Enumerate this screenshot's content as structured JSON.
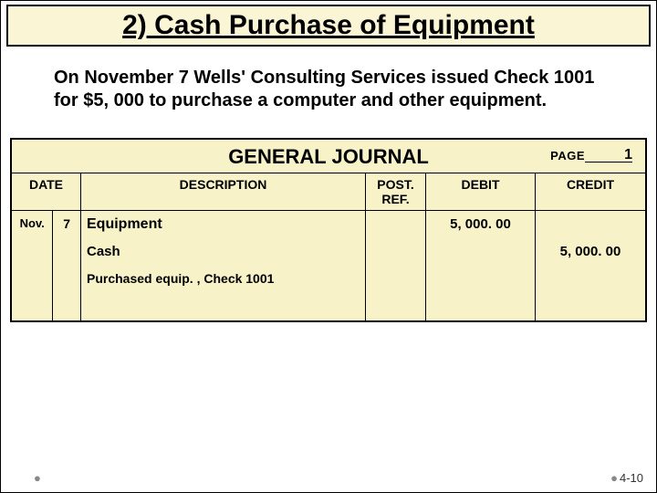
{
  "title": "2) Cash Purchase of Equipment",
  "narrative": "On November 7 Wells' Consulting Services issued Check 1001 for $5, 000 to purchase a computer and other equipment.",
  "journal": {
    "heading": "GENERAL JOURNAL",
    "page_label": "PAGE",
    "page_number": "1",
    "columns": {
      "date": "DATE",
      "description": "DESCRIPTION",
      "post_ref": "POST. REF.",
      "debit": "DEBIT",
      "credit": "CREDIT"
    },
    "entries": {
      "month": "Nov.",
      "day": "7",
      "line1_desc": "Equipment",
      "line1_debit": "5, 000. 00",
      "line2_desc": "Cash",
      "line2_credit": "5, 000. 00",
      "line3_desc": "Purchased equip. , Check 1001"
    }
  },
  "style": {
    "title_bg": "#faf6d5",
    "journal_bg": "#f7f2c8",
    "border_color": "#000000",
    "text_color": "#000000"
  },
  "footer": {
    "page_ref": "4-10"
  }
}
